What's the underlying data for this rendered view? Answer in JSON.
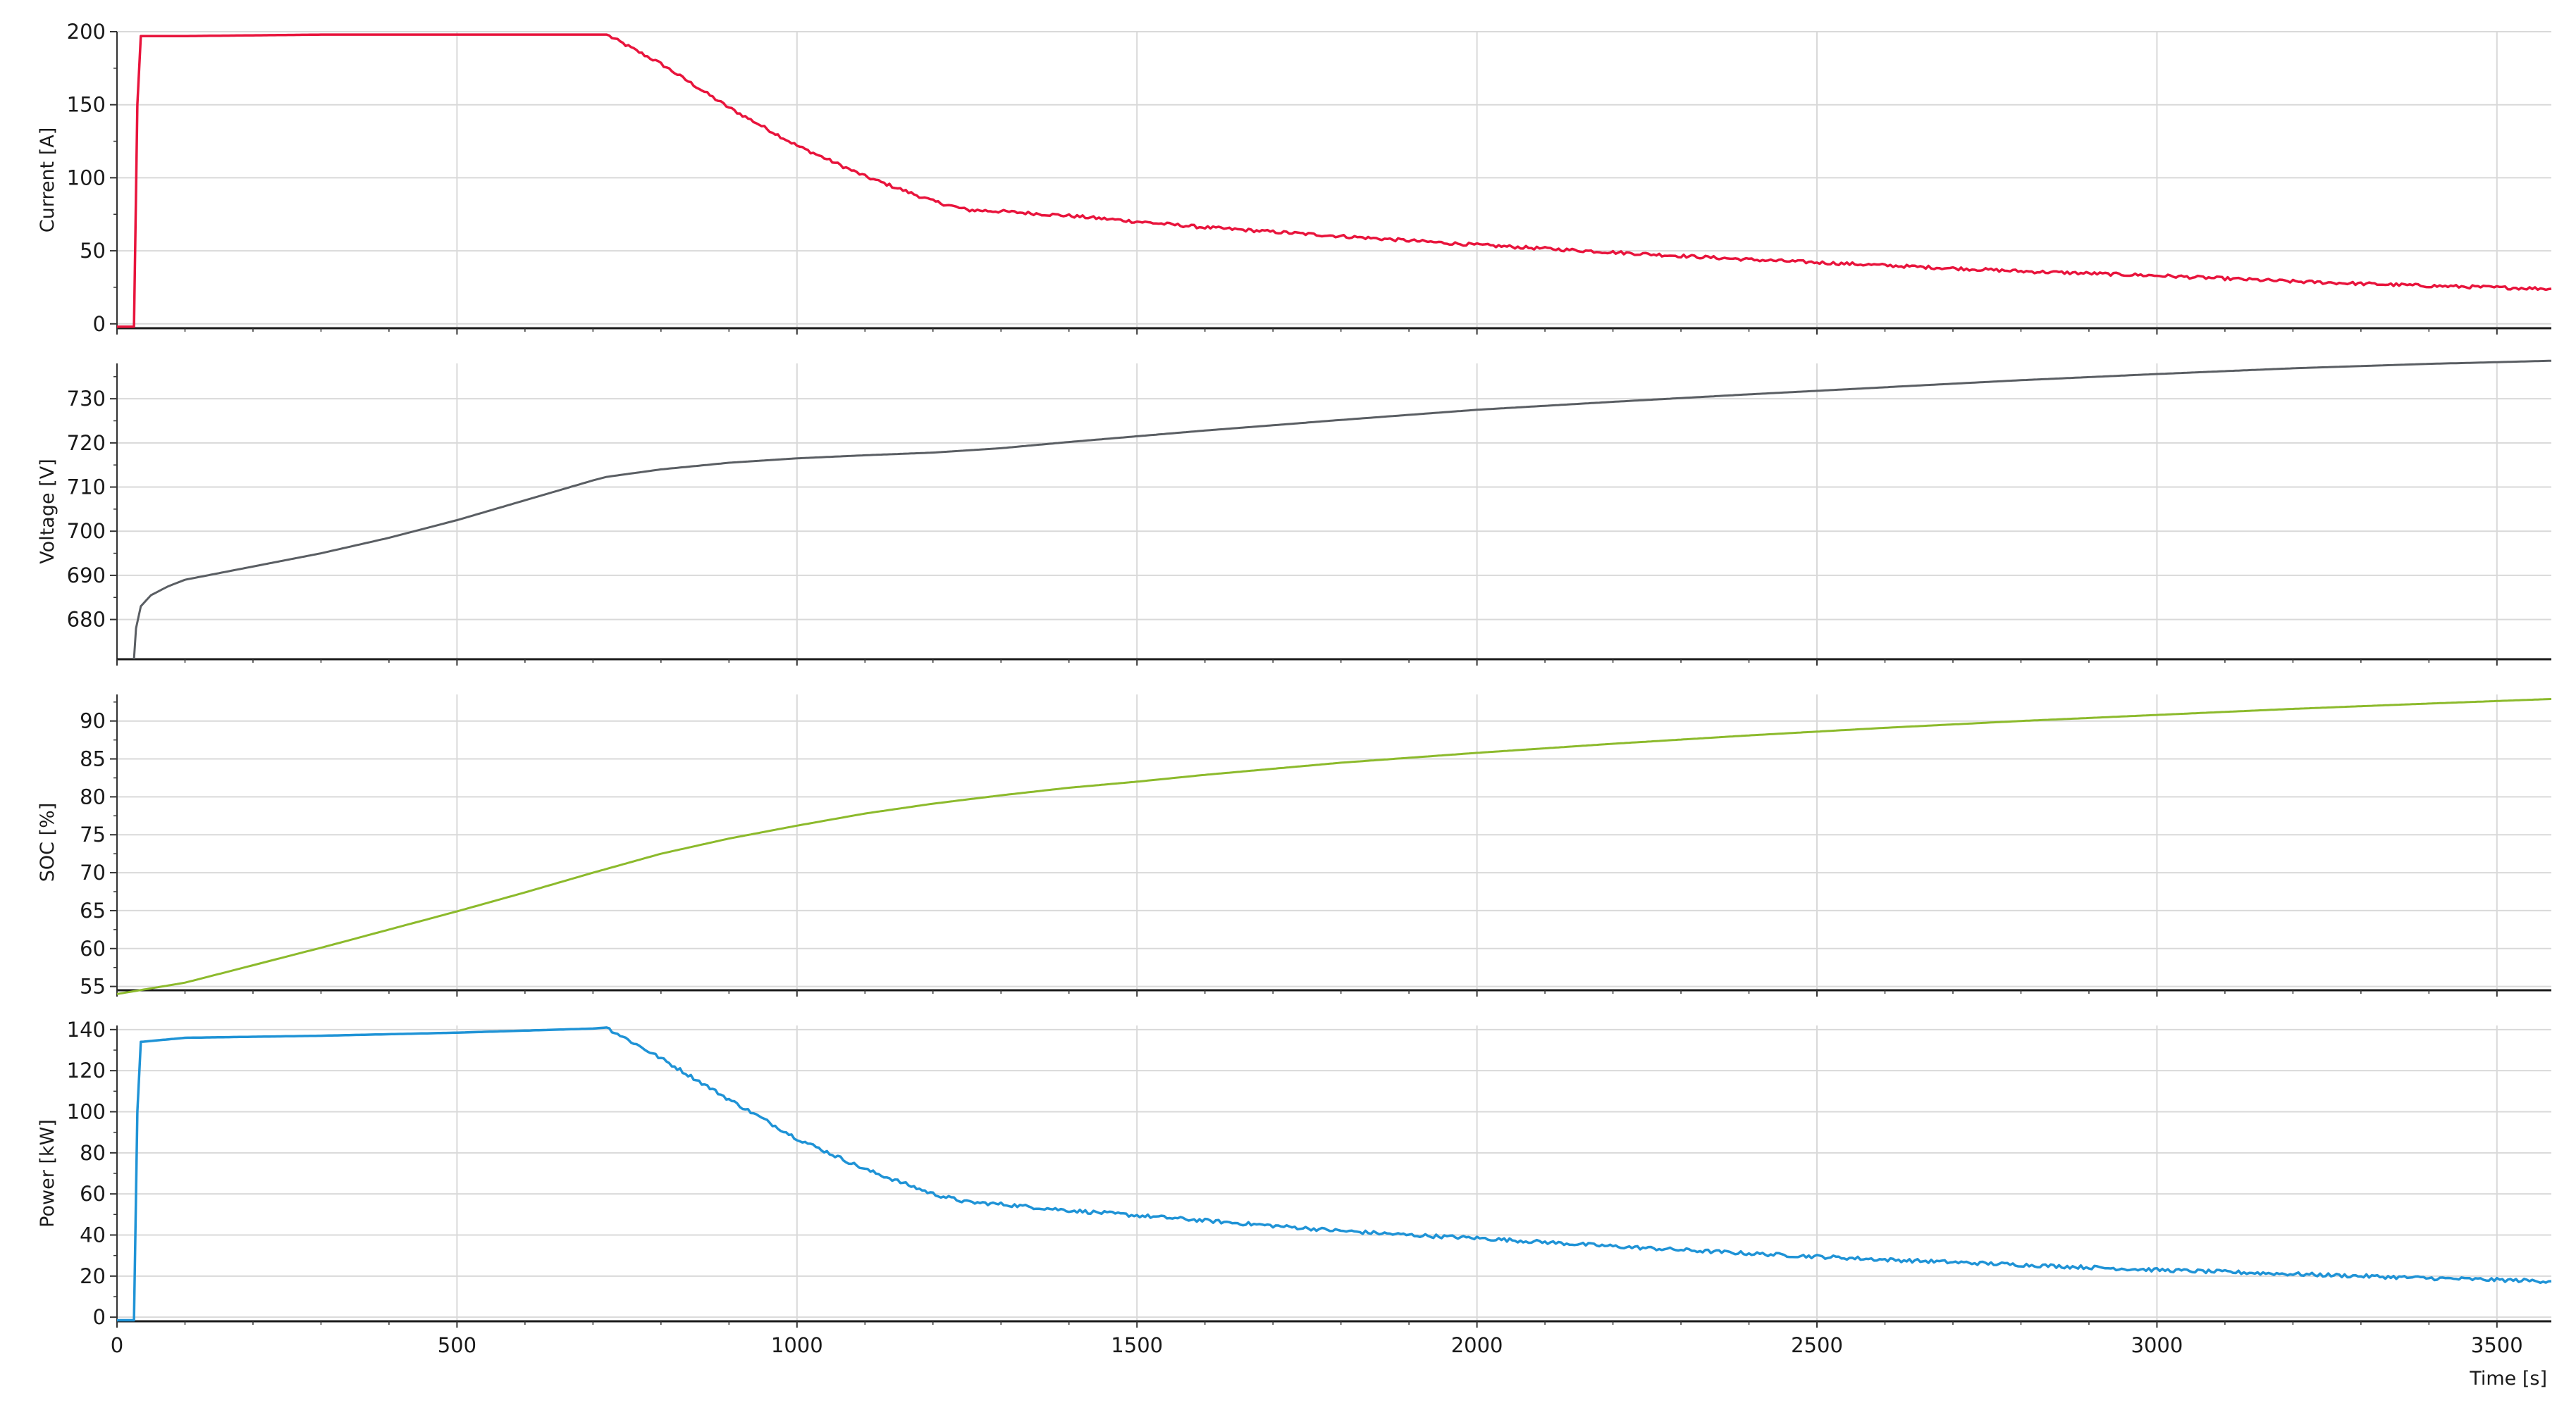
{
  "chart_data": [
    {
      "type": "line",
      "ylabel": "Current [A]",
      "ylim": [
        -3,
        200
      ],
      "yticks": [
        0,
        50,
        100,
        150,
        200
      ],
      "color": "#e8143c",
      "series": [
        {
          "x": [
            0,
            25,
            30,
            35,
            100,
            300,
            500,
            700,
            720,
            800,
            900,
            1000,
            1100,
            1200,
            1250,
            1300,
            1400,
            1500,
            1600,
            1700,
            1800,
            1900,
            2000,
            2200,
            2400,
            2600,
            2800,
            3000,
            3200,
            3400,
            3580
          ],
          "values": [
            -2,
            -2,
            150,
            197,
            197,
            198,
            198,
            198,
            198,
            178,
            148,
            122,
            101,
            84,
            78,
            77,
            74,
            70,
            66,
            63,
            60,
            57,
            54,
            49,
            44,
            40,
            36,
            33,
            29,
            26,
            24
          ]
        }
      ]
    },
    {
      "type": "line",
      "ylabel": "Voltage [V]",
      "ylim": [
        671,
        738
      ],
      "yticks": [
        680,
        690,
        700,
        710,
        720,
        730
      ],
      "color": "#5a5e63",
      "series": [
        {
          "x": [
            25,
            28,
            35,
            50,
            75,
            100,
            150,
            200,
            300,
            400,
            500,
            600,
            700,
            720,
            800,
            900,
            1000,
            1100,
            1200,
            1300,
            1400,
            1500,
            1600,
            1800,
            2000,
            2200,
            2400,
            2600,
            2800,
            3000,
            3200,
            3400,
            3580
          ],
          "values": [
            671,
            678,
            683,
            685.5,
            687.5,
            689,
            690.5,
            692,
            695,
            698.5,
            702.5,
            707,
            711.5,
            712.3,
            714,
            715.5,
            716.5,
            717.2,
            717.8,
            718.8,
            720.2,
            721.5,
            722.8,
            725.2,
            727.5,
            729.3,
            731,
            732.6,
            734.2,
            735.6,
            736.9,
            737.9,
            738.6
          ]
        }
      ]
    },
    {
      "type": "line",
      "ylabel": "SOC [%]",
      "ylim": [
        54.5,
        93.5
      ],
      "yticks": [
        55,
        60,
        65,
        70,
        75,
        80,
        85,
        90
      ],
      "color": "#8cba2c",
      "series": [
        {
          "x": [
            0,
            100,
            200,
            300,
            400,
            500,
            600,
            700,
            800,
            900,
            1000,
            1100,
            1200,
            1300,
            1400,
            1500,
            1600,
            1800,
            2000,
            2200,
            2400,
            2600,
            2800,
            3000,
            3200,
            3400,
            3580
          ],
          "values": [
            54,
            55.5,
            57.8,
            60.1,
            62.5,
            64.9,
            67.4,
            70,
            72.5,
            74.5,
            76.2,
            77.8,
            79.1,
            80.2,
            81.2,
            82,
            82.9,
            84.5,
            85.8,
            87,
            88.1,
            89.1,
            90,
            90.8,
            91.6,
            92.3,
            92.9
          ]
        }
      ]
    },
    {
      "type": "line",
      "ylabel": "Power [kW]",
      "ylim": [
        -2,
        142
      ],
      "yticks": [
        0,
        20,
        40,
        60,
        80,
        100,
        120,
        140
      ],
      "color": "#1f93d6",
      "series": [
        {
          "x": [
            0,
            25,
            30,
            35,
            100,
            300,
            500,
            700,
            720,
            800,
            900,
            1000,
            1100,
            1200,
            1250,
            1300,
            1400,
            1500,
            1600,
            1700,
            1800,
            1900,
            2000,
            2200,
            2400,
            2600,
            2800,
            3000,
            3200,
            3400,
            3580
          ],
          "values": [
            -1.5,
            -1.5,
            100,
            134,
            136,
            137,
            138.5,
            140.5,
            141,
            126,
            106,
            87,
            72,
            60,
            56,
            55,
            52,
            49.5,
            47,
            44.5,
            42,
            40,
            38.5,
            34.5,
            31,
            28,
            25.5,
            23,
            21,
            19,
            17.5
          ]
        }
      ]
    }
  ],
  "x_axis": {
    "xlim": [
      0,
      3580
    ],
    "ticks": [
      0,
      500,
      1000,
      1500,
      2000,
      2500,
      3000,
      3500
    ],
    "label": "Time [s]"
  }
}
